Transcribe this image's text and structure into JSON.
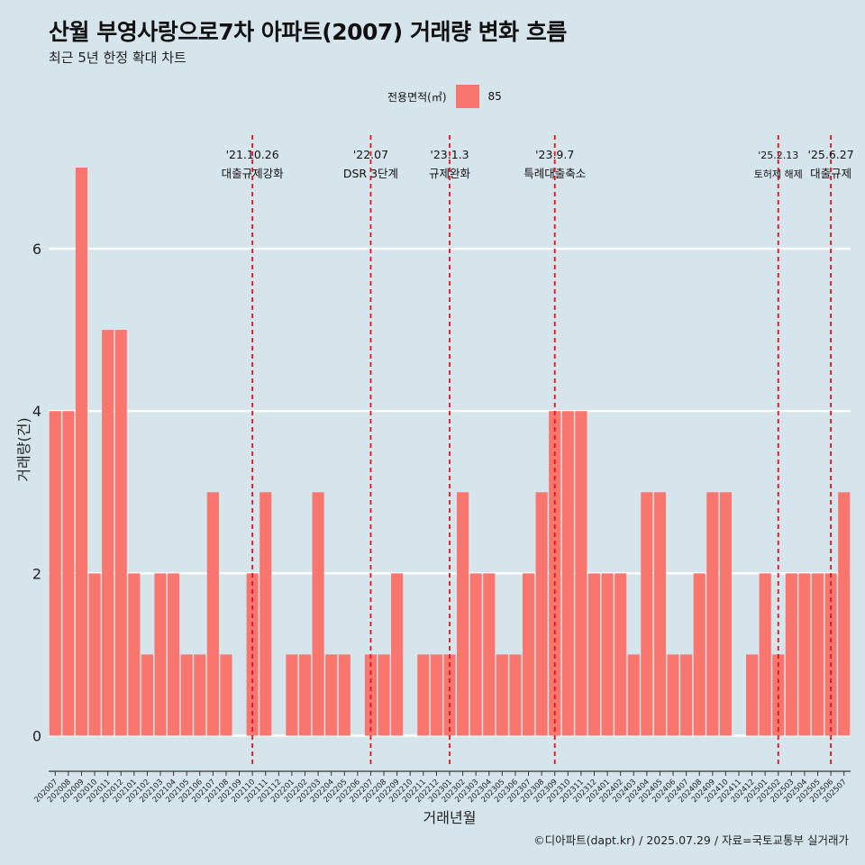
{
  "chart_data": {
    "type": "bar",
    "title": "산월 부영사랑으로7차 아파트(2007) 거래량 변화 흐름",
    "subtitle": "최근 5년 한정 확대 차트",
    "xlabel": "거래년월",
    "ylabel": "거래량(건)",
    "ylim": [
      -0.35,
      7.4
    ],
    "yticks": [
      0,
      2,
      4,
      6
    ],
    "grid": true,
    "legend": {
      "title": "전용면적(㎡)",
      "placement": "top",
      "entries": [
        {
          "label": "85",
          "color": "#f8766d"
        }
      ]
    },
    "series": [
      {
        "name": "85",
        "color": "#f8766d"
      }
    ],
    "categories": [
      "202007",
      "202008",
      "202009",
      "202010",
      "202011",
      "202012",
      "202101",
      "202102",
      "202103",
      "202104",
      "202105",
      "202106",
      "202107",
      "202108",
      "202109",
      "202110",
      "202111",
      "202112",
      "202201",
      "202202",
      "202203",
      "202204",
      "202205",
      "202206",
      "202207",
      "202208",
      "202209",
      "202210",
      "202211",
      "202212",
      "202301",
      "202302",
      "202303",
      "202304",
      "202305",
      "202306",
      "202307",
      "202308",
      "202309",
      "202310",
      "202311",
      "202312",
      "202401",
      "202402",
      "202403",
      "202404",
      "202405",
      "202406",
      "202407",
      "202408",
      "202409",
      "202410",
      "202411",
      "202412",
      "202501",
      "202502",
      "202503",
      "202504",
      "202505",
      "202506",
      "202507"
    ],
    "values": [
      4,
      4,
      7,
      2,
      5,
      5,
      2,
      1,
      2,
      2,
      1,
      1,
      3,
      1,
      0,
      2,
      3,
      0,
      1,
      1,
      3,
      1,
      1,
      0,
      1,
      1,
      2,
      0,
      1,
      1,
      1,
      3,
      2,
      2,
      1,
      1,
      2,
      3,
      4,
      4,
      4,
      2,
      2,
      2,
      1,
      3,
      3,
      1,
      1,
      2,
      3,
      3,
      0,
      1,
      2,
      1,
      2,
      2,
      2,
      2,
      3
    ],
    "annotations": [
      {
        "category": "202110",
        "date": "'21.10.26",
        "label": "대출규제강화",
        "size": "normal"
      },
      {
        "category": "202207",
        "date": "'22.07",
        "label": "DSR 3단계",
        "size": "normal"
      },
      {
        "category": "202301",
        "date": "'23.1.3",
        "label": "규제완화",
        "size": "normal"
      },
      {
        "category": "202309",
        "date": "'23.9.7",
        "label": "특례대출축소",
        "size": "normal"
      },
      {
        "category": "202502",
        "date": "'25.2.13",
        "label": "토허제 해제",
        "size": "small"
      },
      {
        "category": "202506",
        "date": "'25.6.27",
        "label": "대출규제",
        "size": "normal"
      }
    ]
  },
  "footer": {
    "caption": "©디아파트(dapt.kr) / 2025.07.29 / 자료=국토교통부 실거래가"
  },
  "colors": {
    "background": "#d6e4ec",
    "bar": "#f8766d",
    "grid": "#ffffff",
    "annotation_line": "#e8101a"
  }
}
